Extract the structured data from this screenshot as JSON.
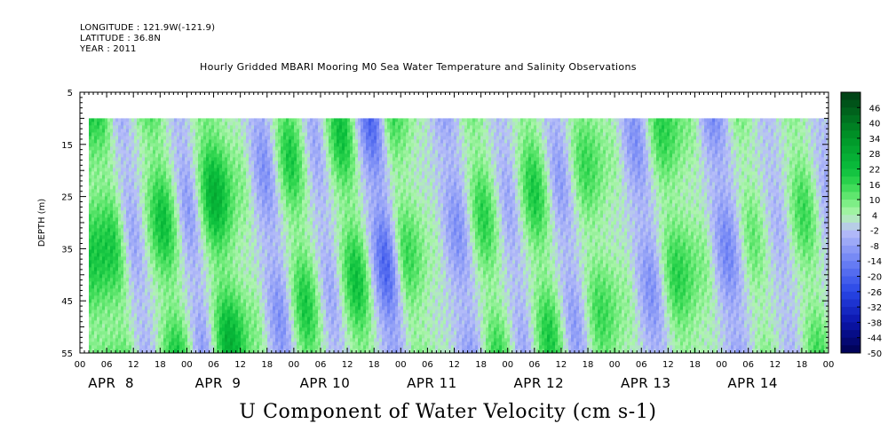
{
  "header": {
    "longitude": "LONGITUDE : 121.9W(-121.9)",
    "latitude": "LATITUDE : 36.8N",
    "year": "YEAR : 2011",
    "title": "Hourly Gridded MBARI Mooring M0 Sea Water Temperature and Salinity Observations"
  },
  "chart_data": {
    "type": "heatmap",
    "title": "Hourly Gridded MBARI Mooring M0 Sea Water Temperature and Salinity Observations",
    "xlabel": "U Component of Water Velocity (cm s-1)",
    "ylabel": "DEPTH (m)",
    "ylim": [
      55,
      5
    ],
    "y_ticks": [
      5,
      15,
      25,
      35,
      45,
      55
    ],
    "data_depth_range": [
      10,
      55
    ],
    "x_tick_labels": [
      "00",
      "06",
      "12",
      "18",
      "00",
      "06",
      "12",
      "18",
      "00",
      "06",
      "12",
      "18",
      "00",
      "06",
      "12",
      "18",
      "00",
      "06",
      "12",
      "18",
      "00",
      "06",
      "12",
      "18",
      "00",
      "06",
      "12",
      "18",
      "00"
    ],
    "x_day_labels": [
      "APR  8",
      "APR  9",
      "APR 10",
      "APR 11",
      "APR 12",
      "APR 13",
      "APR 14"
    ],
    "x_range_hours_from_apr8_00": [
      0,
      168
    ],
    "data_start_hour": 2,
    "colorbar": {
      "labels": [
        46,
        40,
        34,
        28,
        22,
        16,
        10,
        4,
        -2,
        -8,
        -14,
        -20,
        -26,
        -32,
        -38,
        -44,
        -50
      ],
      "range": [
        -50,
        52
      ]
    },
    "colors": {
      "positive": "#00c040",
      "near_zero_pos": "#a8f0a8",
      "near_zero_neg": "#b8c0f8",
      "negative": "#2040e0"
    },
    "field_phases_hours": [
      {
        "hour": 4,
        "value": 18
      },
      {
        "hour": 9,
        "value": -6
      },
      {
        "hour": 16,
        "value": 20
      },
      {
        "hour": 22,
        "value": -8
      },
      {
        "hour": 28,
        "value": 24
      },
      {
        "hour": 34,
        "value": 8
      },
      {
        "hour": 40,
        "value": -10
      },
      {
        "hour": 46,
        "value": 18
      },
      {
        "hour": 52,
        "value": -6
      },
      {
        "hour": 58,
        "value": 20
      },
      {
        "hour": 65,
        "value": -18
      },
      {
        "hour": 70,
        "value": 14
      },
      {
        "hour": 76,
        "value": 4
      },
      {
        "hour": 82,
        "value": -10
      },
      {
        "hour": 88,
        "value": 16
      },
      {
        "hour": 94,
        "value": -6
      },
      {
        "hour": 100,
        "value": 18
      },
      {
        "hour": 106,
        "value": -8
      },
      {
        "hour": 112,
        "value": 14
      },
      {
        "hour": 118,
        "value": 6
      },
      {
        "hour": 124,
        "value": -10
      },
      {
        "hour": 130,
        "value": 16
      },
      {
        "hour": 136,
        "value": 8
      },
      {
        "hour": 142,
        "value": -12
      },
      {
        "hour": 148,
        "value": 10
      },
      {
        "hour": 154,
        "value": -4
      },
      {
        "hour": 160,
        "value": 14
      },
      {
        "hour": 166,
        "value": -6
      }
    ]
  }
}
